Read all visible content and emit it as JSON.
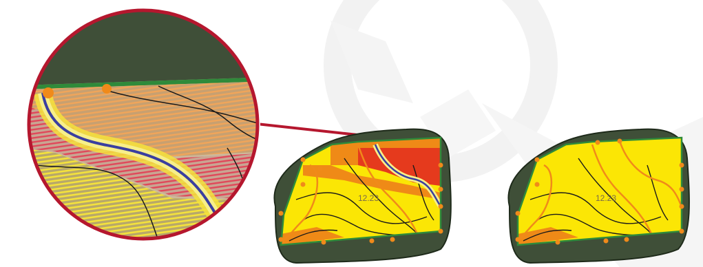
{
  "illustration": {
    "watermark_icon": "logo-watermark",
    "magnifier_icon": "magnifier-lens-icon",
    "connector_icon": "zoom-connector-pin"
  },
  "maps": {
    "left": {
      "zone_value": "12.23"
    },
    "right": {
      "zone_value": "12.23"
    }
  },
  "colors": {
    "accent_red": "#b5172e",
    "zone_yellow": "#fbe605",
    "zone_orange": "#ef8a17",
    "zone_red": "#e53a1d",
    "guide_line_blue": "#3a3fa0",
    "boundary_green": "#2f8a3a",
    "aerial_dark": "#3f4f38",
    "marker_orange": "#f08a1a"
  }
}
